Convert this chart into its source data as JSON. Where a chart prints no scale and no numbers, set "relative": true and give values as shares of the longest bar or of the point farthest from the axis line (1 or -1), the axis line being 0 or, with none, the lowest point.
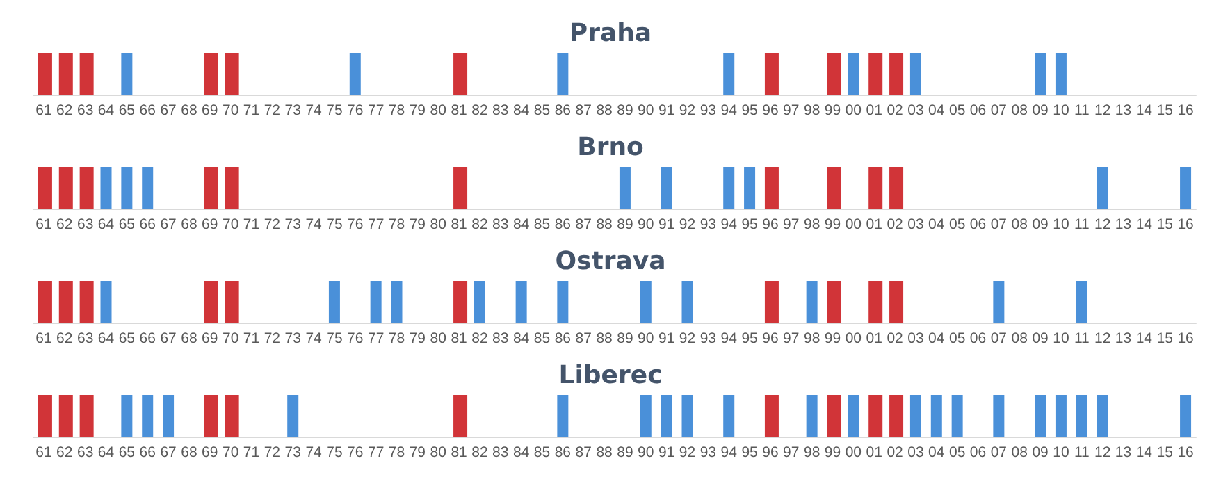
{
  "chart_data": [
    {
      "type": "bar",
      "title": "Praha",
      "relative": true,
      "categories": [
        "61",
        "62",
        "63",
        "64",
        "65",
        "66",
        "67",
        "68",
        "69",
        "70",
        "71",
        "72",
        "73",
        "74",
        "75",
        "76",
        "77",
        "78",
        "79",
        "80",
        "81",
        "82",
        "83",
        "84",
        "85",
        "86",
        "87",
        "88",
        "89",
        "90",
        "91",
        "92",
        "93",
        "94",
        "95",
        "96",
        "97",
        "98",
        "99",
        "00",
        "01",
        "02",
        "03",
        "04",
        "05",
        "06",
        "07",
        "08",
        "09",
        "10",
        "11",
        "12",
        "13",
        "14",
        "15",
        "16"
      ],
      "series": [
        {
          "color": "#d13438",
          "values": [
            1,
            1,
            1,
            null,
            null,
            null,
            null,
            null,
            1,
            1,
            null,
            null,
            null,
            null,
            null,
            null,
            null,
            null,
            null,
            null,
            1,
            null,
            null,
            null,
            null,
            null,
            null,
            null,
            null,
            null,
            null,
            null,
            null,
            null,
            null,
            1,
            null,
            null,
            1,
            null,
            1,
            1,
            null,
            null,
            null,
            null,
            null,
            null,
            null,
            null,
            null,
            null,
            null,
            null,
            null,
            null
          ]
        },
        {
          "color": "#4a90d9",
          "values": [
            null,
            null,
            null,
            null,
            1,
            null,
            null,
            null,
            null,
            null,
            null,
            null,
            null,
            null,
            null,
            1,
            null,
            null,
            null,
            null,
            null,
            null,
            null,
            null,
            null,
            1,
            null,
            null,
            null,
            null,
            null,
            null,
            null,
            1,
            null,
            null,
            null,
            null,
            null,
            1,
            null,
            null,
            1,
            null,
            null,
            null,
            null,
            null,
            1,
            1,
            null,
            null,
            null,
            null,
            null,
            null
          ]
        }
      ]
    },
    {
      "type": "bar",
      "title": "Brno",
      "relative": true,
      "categories": [
        "61",
        "62",
        "63",
        "64",
        "65",
        "66",
        "67",
        "68",
        "69",
        "70",
        "71",
        "72",
        "73",
        "74",
        "75",
        "76",
        "77",
        "78",
        "79",
        "80",
        "81",
        "82",
        "83",
        "84",
        "85",
        "86",
        "87",
        "88",
        "89",
        "90",
        "91",
        "92",
        "93",
        "94",
        "95",
        "96",
        "97",
        "98",
        "99",
        "00",
        "01",
        "02",
        "03",
        "04",
        "05",
        "06",
        "07",
        "08",
        "09",
        "10",
        "11",
        "12",
        "13",
        "14",
        "15",
        "16"
      ],
      "series": [
        {
          "color": "#d13438",
          "values": [
            1,
            1,
            1,
            null,
            null,
            null,
            null,
            null,
            1,
            1,
            null,
            null,
            null,
            null,
            null,
            null,
            null,
            null,
            null,
            null,
            1,
            null,
            null,
            null,
            null,
            null,
            null,
            null,
            null,
            null,
            null,
            null,
            null,
            null,
            null,
            1,
            null,
            null,
            1,
            null,
            1,
            1,
            null,
            null,
            null,
            null,
            null,
            null,
            null,
            null,
            null,
            null,
            null,
            null,
            null,
            null
          ]
        },
        {
          "color": "#4a90d9",
          "values": [
            null,
            null,
            null,
            1,
            1,
            1,
            null,
            null,
            null,
            null,
            null,
            null,
            null,
            null,
            null,
            null,
            null,
            null,
            null,
            null,
            null,
            null,
            null,
            null,
            null,
            null,
            null,
            null,
            1,
            null,
            1,
            null,
            null,
            1,
            1,
            null,
            null,
            null,
            null,
            null,
            null,
            null,
            null,
            null,
            null,
            null,
            null,
            null,
            null,
            null,
            null,
            1,
            null,
            null,
            null,
            1
          ]
        }
      ]
    },
    {
      "type": "bar",
      "title": "Ostrava",
      "relative": true,
      "categories": [
        "61",
        "62",
        "63",
        "64",
        "65",
        "66",
        "67",
        "68",
        "69",
        "70",
        "71",
        "72",
        "73",
        "74",
        "75",
        "76",
        "77",
        "78",
        "79",
        "80",
        "81",
        "82",
        "83",
        "84",
        "85",
        "86",
        "87",
        "88",
        "89",
        "90",
        "91",
        "92",
        "93",
        "94",
        "95",
        "96",
        "97",
        "98",
        "99",
        "00",
        "01",
        "02",
        "03",
        "04",
        "05",
        "06",
        "07",
        "08",
        "09",
        "10",
        "11",
        "12",
        "13",
        "14",
        "15",
        "16"
      ],
      "series": [
        {
          "color": "#d13438",
          "values": [
            1,
            1,
            1,
            null,
            null,
            null,
            null,
            null,
            1,
            1,
            null,
            null,
            null,
            null,
            null,
            null,
            null,
            null,
            null,
            null,
            1,
            null,
            null,
            null,
            null,
            null,
            null,
            null,
            null,
            null,
            null,
            null,
            null,
            null,
            null,
            1,
            null,
            null,
            1,
            null,
            1,
            1,
            null,
            null,
            null,
            null,
            null,
            null,
            null,
            null,
            null,
            null,
            null,
            null,
            null,
            null
          ]
        },
        {
          "color": "#4a90d9",
          "values": [
            null,
            null,
            null,
            1,
            null,
            null,
            null,
            null,
            null,
            null,
            null,
            null,
            null,
            null,
            1,
            null,
            1,
            1,
            null,
            null,
            null,
            1,
            null,
            1,
            null,
            1,
            null,
            null,
            null,
            1,
            null,
            1,
            null,
            null,
            null,
            null,
            null,
            1,
            null,
            null,
            null,
            null,
            null,
            null,
            null,
            null,
            1,
            null,
            null,
            null,
            1,
            null,
            null,
            null,
            null,
            null
          ]
        }
      ]
    },
    {
      "type": "bar",
      "title": "Liberec",
      "relative": true,
      "categories": [
        "61",
        "62",
        "63",
        "64",
        "65",
        "66",
        "67",
        "68",
        "69",
        "70",
        "71",
        "72",
        "73",
        "74",
        "75",
        "76",
        "77",
        "78",
        "79",
        "80",
        "81",
        "82",
        "83",
        "84",
        "85",
        "86",
        "87",
        "88",
        "89",
        "90",
        "91",
        "92",
        "93",
        "94",
        "95",
        "96",
        "97",
        "98",
        "99",
        "00",
        "01",
        "02",
        "03",
        "04",
        "05",
        "06",
        "07",
        "08",
        "09",
        "10",
        "11",
        "12",
        "13",
        "14",
        "15",
        "16"
      ],
      "series": [
        {
          "color": "#d13438",
          "values": [
            1,
            1,
            1,
            null,
            null,
            null,
            null,
            null,
            1,
            1,
            null,
            null,
            null,
            null,
            null,
            null,
            null,
            null,
            null,
            null,
            1,
            null,
            null,
            null,
            null,
            null,
            null,
            null,
            null,
            null,
            null,
            null,
            null,
            null,
            null,
            1,
            null,
            null,
            1,
            null,
            1,
            1,
            null,
            null,
            null,
            null,
            null,
            null,
            null,
            null,
            null,
            null,
            null,
            null,
            null,
            null
          ]
        },
        {
          "color": "#4a90d9",
          "values": [
            null,
            null,
            null,
            null,
            1,
            1,
            1,
            null,
            null,
            null,
            null,
            null,
            1,
            null,
            null,
            null,
            null,
            null,
            null,
            null,
            null,
            null,
            null,
            null,
            null,
            1,
            null,
            null,
            null,
            1,
            1,
            1,
            null,
            1,
            null,
            null,
            null,
            1,
            null,
            1,
            null,
            null,
            1,
            1,
            1,
            null,
            1,
            null,
            1,
            1,
            1,
            1,
            null,
            null,
            null,
            1
          ]
        }
      ]
    }
  ]
}
